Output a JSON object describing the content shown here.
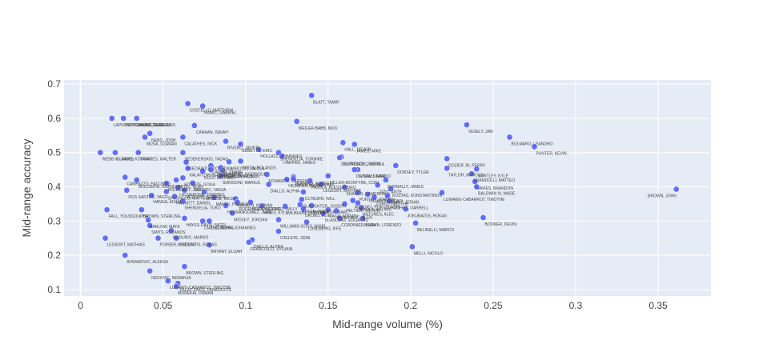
{
  "chart_data": {
    "type": "scatter",
    "title": "",
    "xlabel": "Mid-range volume (%)",
    "ylabel": "Mid-range accuracy",
    "xlim": [
      -0.01,
      0.382
    ],
    "ylim": [
      0.081,
      0.712
    ],
    "x_ticks": [
      0,
      0.05,
      0.1,
      0.15,
      0.2,
      0.25,
      0.3,
      0.35
    ],
    "x_tick_labels": [
      "0",
      "0.05",
      "0.1",
      "0.15",
      "0.2",
      "0.25",
      "0.3",
      "0.35"
    ],
    "y_ticks": [
      0.1,
      0.2,
      0.3,
      0.4,
      0.5,
      0.6,
      0.7
    ],
    "y_tick_labels": [
      "0.1",
      "0.2",
      "0.3",
      "0.4",
      "0.5",
      "0.6",
      "0.7"
    ],
    "grid": true,
    "marker_color": "#636efa",
    "plot_background": "#e5ecf6",
    "points": [
      {
        "name": "BLATT, TAMIR",
        "x": 0.14,
        "y": 0.667
      },
      {
        "name": "COSTELLO, MATTHEW",
        "x": 0.065,
        "y": 0.643
      },
      {
        "name": "RAMIC, GABRIEL",
        "x": 0.074,
        "y": 0.636
      },
      {
        "name": "LAPROVITTOLA, NICOLAS",
        "x": 0.019,
        "y": 0.6
      },
      {
        "name": "PAPAGIANNIS, GEORGIOS",
        "x": 0.026,
        "y": 0.6
      },
      {
        "name": "WARD, TAUREAN",
        "x": 0.034,
        "y": 0.6
      },
      {
        "name": "WEILER-BABB, NICK",
        "x": 0.131,
        "y": 0.591
      },
      {
        "name": "VESELY, JAN",
        "x": 0.234,
        "y": 0.581
      },
      {
        "name": "CANAAN, ISAIAH",
        "x": 0.069,
        "y": 0.579
      },
      {
        "name": "NEBO, JOSH",
        "x": 0.042,
        "y": 0.556
      },
      {
        "name": "MUSA, DZANAN",
        "x": 0.039,
        "y": 0.545
      },
      {
        "name": "CALATHES, NICK",
        "x": 0.062,
        "y": 0.545
      },
      {
        "name": "BOLMARO, LEANDRO",
        "x": 0.26,
        "y": 0.545
      },
      {
        "name": "RIVERO, JAVIER",
        "x": 0.088,
        "y": 0.533
      },
      {
        "name": "HALL, DEVON",
        "x": 0.159,
        "y": 0.529
      },
      {
        "name": "JAMES, MIKE",
        "x": 0.166,
        "y": 0.524
      },
      {
        "name": "EBBETTS, ERIC",
        "x": 0.097,
        "y": 0.525
      },
      {
        "name": "PUNTER, KEVIN",
        "x": 0.275,
        "y": 0.517
      },
      {
        "name": "SHENGELIA, TORNIKE",
        "x": 0.12,
        "y": 0.5
      },
      {
        "name": "HOLLATZ, JOHANNES",
        "x": 0.108,
        "y": 0.509
      },
      {
        "name": "WEBB III, JAMES",
        "x": 0.012,
        "y": 0.5
      },
      {
        "name": "SLUKAS, KOSTAS",
        "x": 0.021,
        "y": 0.5
      },
      {
        "name": "TAVARES, WALTER",
        "x": 0.035,
        "y": 0.5
      },
      {
        "name": "SEDEKERSKIS, TADAS",
        "x": 0.062,
        "y": 0.5
      },
      {
        "name": "HARPER, JARED",
        "x": 0.122,
        "y": 0.49
      },
      {
        "name": "FLORENCE, JUSTIN",
        "x": 0.158,
        "y": 0.487
      },
      {
        "name": "DIMITRIJEVIC, NIKOLA",
        "x": 0.157,
        "y": 0.485
      },
      {
        "name": "DOZIER JR, PERRY",
        "x": 0.222,
        "y": 0.482
      },
      {
        "name": "GIEDRAITIS, DOVYDAS",
        "x": 0.064,
        "y": 0.472
      },
      {
        "name": "MIROTIC, NIKOLA",
        "x": 0.09,
        "y": 0.473
      },
      {
        "name": "SMITS, ROLANDS",
        "x": 0.097,
        "y": 0.475
      },
      {
        "name": "DORSEY, TYLER",
        "x": 0.191,
        "y": 0.462
      },
      {
        "name": "LARKIN, SHANE",
        "x": 0.079,
        "y": 0.462
      },
      {
        "name": "BEAUBOIS, RODRIGUE",
        "x": 0.085,
        "y": 0.456
      },
      {
        "name": "THOMPSON, DARIUS",
        "x": 0.079,
        "y": 0.45
      },
      {
        "name": "KALAITZAKIS, PANAGIOTIS",
        "x": 0.065,
        "y": 0.454
      },
      {
        "name": "TAYLOR, MARCUS",
        "x": 0.222,
        "y": 0.454
      },
      {
        "name": "BARTLEY, KYLE",
        "x": 0.24,
        "y": 0.452
      },
      {
        "name": "SHAW, KEAIR",
        "x": 0.168,
        "y": 0.45
      },
      {
        "name": "DE COLO, NANDO",
        "x": 0.166,
        "y": 0.45
      },
      {
        "name": "MORGAN, ROMAN",
        "x": 0.086,
        "y": 0.449
      },
      {
        "name": "ROLL, MICHAEL",
        "x": 0.074,
        "y": 0.446
      },
      {
        "name": "GRANDOLLI, MATTEO",
        "x": 0.237,
        "y": 0.438
      },
      {
        "name": "EDWARDS, CARSEN",
        "x": 0.113,
        "y": 0.436
      },
      {
        "name": "HOWARD, MARKEL",
        "x": 0.129,
        "y": 0.429
      },
      {
        "name": "SORIGONI, MARIUS",
        "x": 0.085,
        "y": 0.432
      },
      {
        "name": "SIRVYDIS, DEIVIDAS",
        "x": 0.129,
        "y": 0.424
      },
      {
        "name": "MILLER-MCINTYRE, CODI",
        "x": 0.15,
        "y": 0.432
      },
      {
        "name": "BITADZE, GOGA",
        "x": 0.062,
        "y": 0.426
      },
      {
        "name": "CAMPAZZO, FACUNDO",
        "x": 0.027,
        "y": 0.428
      },
      {
        "name": "WOLDEKIN, BRANDON",
        "x": 0.034,
        "y": 0.42
      },
      {
        "name": "ERTEL, ALAN",
        "x": 0.058,
        "y": 0.42
      },
      {
        "name": "HEZONJA, MARIO",
        "x": 0.125,
        "y": 0.422
      },
      {
        "name": "PAJOLA, ALESSANDRO",
        "x": 0.139,
        "y": 0.418
      },
      {
        "name": "NUNNALLY, JAMES",
        "x": 0.185,
        "y": 0.42
      },
      {
        "name": "DAVIES, BRANDON",
        "x": 0.239,
        "y": 0.415
      },
      {
        "name": "MIROTIC, VANJA",
        "x": 0.068,
        "y": 0.411
      },
      {
        "name": "BOLOMBOY, JOEL",
        "x": 0.052,
        "y": 0.41
      },
      {
        "name": "DIALLO, ALPHA",
        "x": 0.114,
        "y": 0.407
      },
      {
        "name": "LESSORT, MATHIAS",
        "x": 0.146,
        "y": 0.408
      },
      {
        "name": "SHAKUR, CAMERON",
        "x": 0.16,
        "y": 0.399
      },
      {
        "name": "ZIZIC, ANTE",
        "x": 0.18,
        "y": 0.405
      },
      {
        "name": "KOSTAS, KONSTANTINOS",
        "x": 0.188,
        "y": 0.394
      },
      {
        "name": "LAUVERGNE, JOFFREY",
        "x": 0.059,
        "y": 0.397
      },
      {
        "name": "BALDWIN IV, WADE",
        "x": 0.24,
        "y": 0.4
      },
      {
        "name": "BROWN, JOHN",
        "x": 0.361,
        "y": 0.393
      },
      {
        "name": "DOS SANTOS, YAGO",
        "x": 0.028,
        "y": 0.39
      },
      {
        "name": "SPAGNOLO, MATTEO",
        "x": 0.052,
        "y": 0.386
      },
      {
        "name": "NEDOVIC, NEMANJA",
        "x": 0.063,
        "y": 0.39
      },
      {
        "name": "VASILJE, MICIC",
        "x": 0.075,
        "y": 0.385
      },
      {
        "name": "CLYBURN, WILL",
        "x": 0.135,
        "y": 0.385
      },
      {
        "name": "PUNTER, JORDAN",
        "x": 0.168,
        "y": 0.383
      },
      {
        "name": "LAZAROU, VEIKO",
        "x": 0.174,
        "y": 0.378
      },
      {
        "name": "LUWAWU-CABARROT, TIMOTHE",
        "x": 0.219,
        "y": 0.383
      },
      {
        "name": "GRANT, JERIAN",
        "x": 0.186,
        "y": 0.374
      },
      {
        "name": "ZORIC, TIMOTHE",
        "x": 0.178,
        "y": 0.37
      },
      {
        "name": "HANGA, ADAM",
        "x": 0.043,
        "y": 0.375
      },
      {
        "name": "HACKETT, DANIEL",
        "x": 0.057,
        "y": 0.372
      },
      {
        "name": "MANEK, PIERRIA",
        "x": 0.081,
        "y": 0.369
      },
      {
        "name": "HANSEN, KEENAN",
        "x": 0.094,
        "y": 0.365
      },
      {
        "name": "SLAUGHTER, JOSEPH",
        "x": 0.134,
        "y": 0.363
      },
      {
        "name": "ALEKSEJ, POKUSEVSKI",
        "x": 0.165,
        "y": 0.36
      },
      {
        "name": "HUGHES, DARRELL",
        "x": 0.187,
        "y": 0.358
      },
      {
        "name": "SHENGELIA, TOKO",
        "x": 0.062,
        "y": 0.358
      },
      {
        "name": "RODRIGUEZ, SERGIO",
        "x": 0.095,
        "y": 0.355
      },
      {
        "name": "HERNANGOMEZ, WILLY",
        "x": 0.103,
        "y": 0.355
      },
      {
        "name": "GREEN, TODD",
        "x": 0.133,
        "y": 0.348
      },
      {
        "name": "RABASEDA, MARC",
        "x": 0.14,
        "y": 0.345
      },
      {
        "name": "PELTIER, VIKTOR",
        "x": 0.16,
        "y": 0.35
      },
      {
        "name": "NIKOLA, KALINIC",
        "x": 0.168,
        "y": 0.353
      },
      {
        "name": "HERNANGOMEZ, JUAN",
        "x": 0.088,
        "y": 0.345
      },
      {
        "name": "HINES, KYLE",
        "x": 0.11,
        "y": 0.344
      },
      {
        "name": "WILBEKIN, SCOTTIE",
        "x": 0.124,
        "y": 0.343
      },
      {
        "name": "ANTUNES, ALEC",
        "x": 0.17,
        "y": 0.339
      },
      {
        "name": "OKOBO, ELIE",
        "x": 0.135,
        "y": 0.336
      },
      {
        "name": "JOKUBAITIS, ROKAS",
        "x": 0.197,
        "y": 0.335
      },
      {
        "name": "PAGE, ADRIEN",
        "x": 0.15,
        "y": 0.333
      },
      {
        "name": "SMAILAGIC, ALEN",
        "x": 0.155,
        "y": 0.33
      },
      {
        "name": "FALL, YOUSSOUPHA",
        "x": 0.016,
        "y": 0.333
      },
      {
        "name": "BROWN, STERLING",
        "x": 0.037,
        "y": 0.333
      },
      {
        "name": "MICKEY, JORDAN",
        "x": 0.092,
        "y": 0.323
      },
      {
        "name": "ULANOVAS, EDGARAS",
        "x": 0.147,
        "y": 0.322
      },
      {
        "name": "BARLOW, MATE",
        "x": 0.041,
        "y": 0.303
      },
      {
        "name": "HAYES-DAVIS, NIGEL",
        "x": 0.063,
        "y": 0.308
      },
      {
        "name": "CORDINIER, ISAIA",
        "x": 0.157,
        "y": 0.308
      },
      {
        "name": "BROWN, LORENZO",
        "x": 0.171,
        "y": 0.308
      },
      {
        "name": "BOOKER, DEVIN",
        "x": 0.244,
        "y": 0.31
      },
      {
        "name": "WILLIAMS-GOSS, NIGEL",
        "x": 0.12,
        "y": 0.304
      },
      {
        "name": "THIEMANN, JOHANNES",
        "x": 0.078,
        "y": 0.3
      },
      {
        "name": "DIALLO, ALPHA",
        "x": 0.074,
        "y": 0.3
      },
      {
        "name": "LUNDBERG, IFFE",
        "x": 0.137,
        "y": 0.297
      },
      {
        "name": "BELINELLI, MARCO",
        "x": 0.203,
        "y": 0.294
      },
      {
        "name": "SMITS, ROLANDS",
        "x": 0.042,
        "y": 0.287
      },
      {
        "name": "GUDURIC, MARKO",
        "x": 0.055,
        "y": 0.272
      },
      {
        "name": "OJELEYE, SEMI",
        "x": 0.12,
        "y": 0.27
      },
      {
        "name": "LESSORT, MATHIAS",
        "x": 0.015,
        "y": 0.25
      },
      {
        "name": "POIRIER, VINCENT",
        "x": 0.047,
        "y": 0.25
      },
      {
        "name": "GIEDRAITIS, ROKAS",
        "x": 0.058,
        "y": 0.25
      },
      {
        "name": "DIALLO, ALPHA",
        "x": 0.104,
        "y": 0.245
      },
      {
        "name": "FRANCISCO, SYLVAIN",
        "x": 0.102,
        "y": 0.238
      },
      {
        "name": "BRYANT, ELIJAH",
        "x": 0.078,
        "y": 0.23
      },
      {
        "name": "MELLI, NICOLO",
        "x": 0.201,
        "y": 0.225
      },
      {
        "name": "AVRAMOVIC, ALEKSA",
        "x": 0.027,
        "y": 0.2
      },
      {
        "name": "BROWN, STERLING",
        "x": 0.063,
        "y": 0.167
      },
      {
        "name": "NEDOVIC, NEMANJA",
        "x": 0.042,
        "y": 0.154
      },
      {
        "name": "LUWAWU-CABARROT, TIMOTHE",
        "x": 0.053,
        "y": 0.125
      },
      {
        "name": "KALAITZAKIS, PANAGIOTIS",
        "x": 0.059,
        "y": 0.118
      },
      {
        "name": "MOREKAI, OSMAN",
        "x": 0.058,
        "y": 0.109
      }
    ]
  }
}
